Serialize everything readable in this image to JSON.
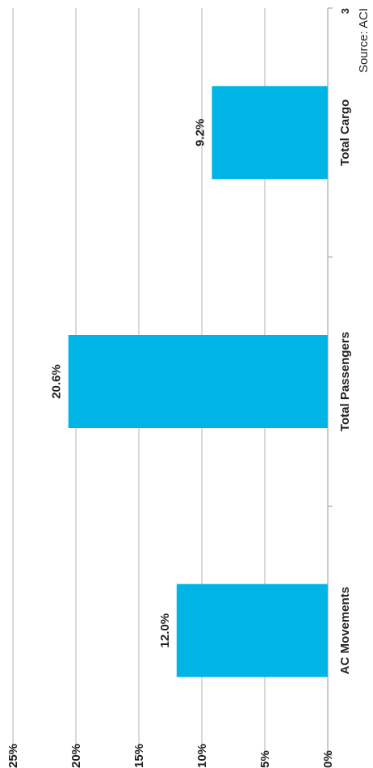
{
  "chart_data": {
    "type": "bar",
    "categories": [
      "AC Movements",
      "Total Passengers",
      "Total Cargo"
    ],
    "values": [
      12.0,
      20.6,
      9.2
    ],
    "data_labels": [
      "12.0%",
      "20.6%",
      "9.2%"
    ],
    "ylim": [
      0,
      25
    ],
    "yticks": [
      0,
      5,
      10,
      15,
      20,
      25
    ],
    "ytick_labels": [
      "0%",
      "5%",
      "10%",
      "15%",
      "20%",
      "25%"
    ],
    "grid": true,
    "bar_color": "#00b5e6",
    "grid_color": "#b3b3b3",
    "title": "",
    "xlabel": "",
    "ylabel": ""
  },
  "footer": {
    "source": "Source: ACI",
    "page_number": "3"
  }
}
